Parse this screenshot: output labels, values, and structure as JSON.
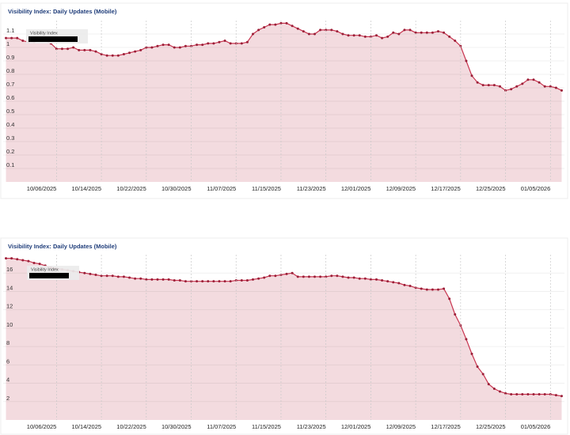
{
  "chart_data": [
    {
      "type": "area",
      "title": "Visibility Index: Daily Updates (Mobile)",
      "categories": [
        null,
        null,
        null,
        null,
        null,
        null,
        null,
        null,
        null,
        "10/06/2025",
        null,
        null,
        null,
        null,
        null,
        null,
        null,
        "10/14/2025",
        null,
        null,
        null,
        null,
        null,
        null,
        null,
        "10/22/2025",
        null,
        null,
        null,
        null,
        null,
        null,
        null,
        "10/30/2025",
        null,
        null,
        null,
        null,
        null,
        null,
        null,
        "11/07/2025",
        null,
        null,
        null,
        null,
        null,
        null,
        null,
        "11/15/2025",
        null,
        null,
        null,
        null,
        null,
        null,
        null,
        "11/23/2025",
        null,
        null,
        null,
        null,
        null,
        null,
        null,
        "12/01/2025",
        null,
        null,
        null,
        null,
        null,
        null,
        null,
        "12/09/2025",
        null,
        null,
        null,
        null,
        null,
        null,
        null,
        "12/17/2025",
        null,
        null,
        null,
        null,
        null,
        null,
        null,
        "12/25/2025",
        null,
        null,
        null,
        null,
        null,
        null,
        null,
        "01/05/2026",
        null,
        null
      ],
      "series": [
        {
          "name": "Visibility Index",
          "color": "#c8344f",
          "values": [
            1.07,
            1.07,
            1.07,
            1.05,
            1.04,
            1.04,
            1.05,
            1.05,
            1.03,
            0.99,
            0.99,
            0.99,
            1.0,
            0.98,
            0.98,
            0.98,
            0.97,
            0.95,
            0.94,
            0.94,
            0.94,
            0.95,
            0.96,
            0.97,
            0.98,
            1.0,
            1.0,
            1.01,
            1.02,
            1.02,
            1.0,
            1.0,
            1.01,
            1.01,
            1.02,
            1.02,
            1.03,
            1.03,
            1.04,
            1.05,
            1.03,
            1.03,
            1.03,
            1.04,
            1.1,
            1.13,
            1.15,
            1.17,
            1.17,
            1.18,
            1.18,
            1.16,
            1.14,
            1.12,
            1.1,
            1.1,
            1.13,
            1.13,
            1.13,
            1.12,
            1.1,
            1.09,
            1.09,
            1.09,
            1.08,
            1.08,
            1.09,
            1.07,
            1.08,
            1.11,
            1.1,
            1.13,
            1.13,
            1.11,
            1.11,
            1.11,
            1.11,
            1.12,
            1.11,
            1.08,
            1.05,
            1.01,
            0.9,
            0.79,
            0.74,
            0.72,
            0.72,
            0.72,
            0.71,
            0.68,
            0.69,
            0.71,
            0.73,
            0.76,
            0.76,
            0.74,
            0.71,
            0.71,
            0.7,
            0.68
          ]
        }
      ],
      "ylim": [
        0,
        1.2
      ],
      "yticks": [
        0.1,
        0.2,
        0.3,
        0.4,
        0.5,
        0.6,
        0.7,
        0.8,
        0.9,
        1,
        1.1
      ],
      "grid": true
    },
    {
      "type": "area",
      "title": "Visibility Index: Daily Updates (Mobile)",
      "categories": [
        null,
        null,
        null,
        null,
        null,
        null,
        null,
        null,
        null,
        "10/06/2025",
        null,
        null,
        null,
        null,
        null,
        null,
        null,
        "10/14/2025",
        null,
        null,
        null,
        null,
        null,
        null,
        null,
        "10/22/2025",
        null,
        null,
        null,
        null,
        null,
        null,
        null,
        "10/30/2025",
        null,
        null,
        null,
        null,
        null,
        null,
        null,
        "11/07/2025",
        null,
        null,
        null,
        null,
        null,
        null,
        null,
        "11/15/2025",
        null,
        null,
        null,
        null,
        null,
        null,
        null,
        "11/23/2025",
        null,
        null,
        null,
        null,
        null,
        null,
        null,
        "12/01/2025",
        null,
        null,
        null,
        null,
        null,
        null,
        null,
        "12/09/2025",
        null,
        null,
        null,
        null,
        null,
        null,
        null,
        "12/17/2025",
        null,
        null,
        null,
        null,
        null,
        null,
        null,
        "12/25/2025",
        null,
        null,
        null,
        null,
        null,
        null,
        null,
        "01/05/2026",
        null,
        null
      ],
      "series": [
        {
          "name": "Visibility Index",
          "color": "#c8344f",
          "values": [
            17.6,
            17.6,
            17.5,
            17.4,
            17.3,
            17.1,
            17.0,
            16.8,
            16.6,
            16.5,
            16.4,
            16.3,
            16.2,
            16.1,
            16.0,
            15.9,
            15.8,
            15.7,
            15.7,
            15.7,
            15.6,
            15.6,
            15.5,
            15.4,
            15.4,
            15.3,
            15.3,
            15.3,
            15.3,
            15.3,
            15.2,
            15.2,
            15.1,
            15.1,
            15.1,
            15.1,
            15.1,
            15.1,
            15.1,
            15.1,
            15.1,
            15.2,
            15.2,
            15.2,
            15.3,
            15.4,
            15.5,
            15.7,
            15.7,
            15.8,
            15.9,
            16.0,
            15.6,
            15.6,
            15.6,
            15.6,
            15.6,
            15.6,
            15.7,
            15.7,
            15.6,
            15.5,
            15.5,
            15.4,
            15.4,
            15.3,
            15.3,
            15.2,
            15.1,
            15.0,
            14.9,
            14.7,
            14.6,
            14.4,
            14.3,
            14.2,
            14.2,
            14.2,
            14.3,
            13.2,
            11.5,
            10.3,
            8.8,
            7.2,
            5.8,
            5.0,
            3.9,
            3.4,
            3.1,
            2.9,
            2.8,
            2.8,
            2.8,
            2.8,
            2.8,
            2.8,
            2.8,
            2.8,
            2.7,
            2.6
          ]
        }
      ],
      "ylim": [
        0,
        18
      ],
      "yticks": [
        2,
        4,
        6,
        8,
        10,
        12,
        14,
        16
      ],
      "grid": true
    }
  ]
}
